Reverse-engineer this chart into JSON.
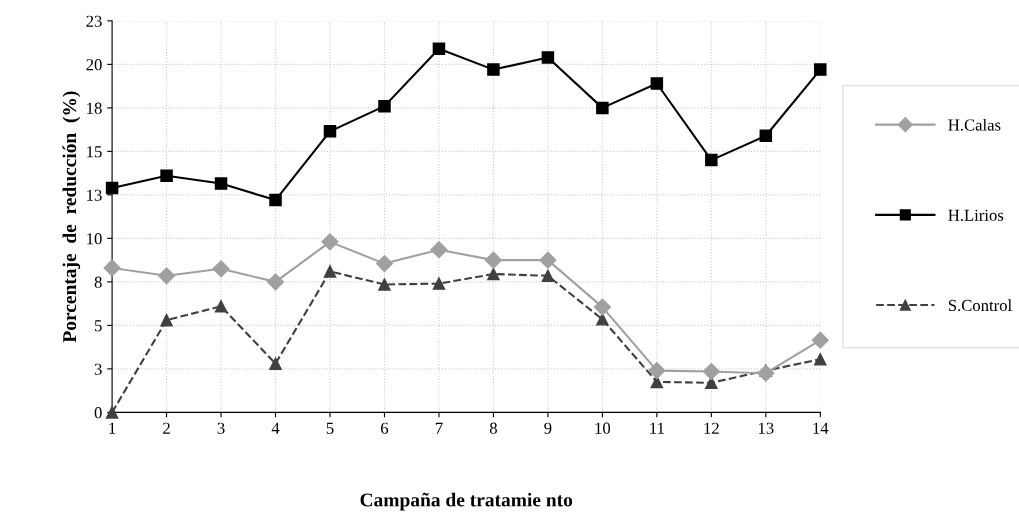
{
  "chart_data": {
    "type": "line",
    "xlabel": "Campaña de tratamie nto",
    "ylabel": "Porcentaje  de  reducción  (%)",
    "x": [
      1,
      2,
      3,
      4,
      5,
      6,
      7,
      8,
      9,
      10,
      11,
      12,
      13,
      14
    ],
    "series": [
      {
        "name": "H.Calas",
        "color": "#a0a0a0",
        "marker": "diamond",
        "line_style": "solid",
        "values": [
          8.3,
          7.85,
          8.25,
          7.5,
          9.8,
          8.55,
          9.35,
          8.75,
          8.75,
          6.05,
          2.4,
          2.35,
          2.25,
          4.15
        ]
      },
      {
        "name": "H.Lirios",
        "color": "#000000",
        "marker": "square",
        "line_style": "solid",
        "values": [
          12.9,
          13.6,
          13.15,
          12.2,
          16.15,
          17.6,
          20.9,
          19.7,
          20.4,
          17.5,
          18.9,
          14.5,
          15.9,
          19.7
        ]
      },
      {
        "name": "S.Control",
        "color": "#404040",
        "marker": "triangle",
        "line_style": "dashed",
        "values": [
          0,
          5.3,
          6.1,
          2.8,
          8.1,
          7.35,
          7.4,
          7.95,
          7.85,
          5.35,
          1.75,
          1.7,
          2.4,
          3.05
        ]
      }
    ],
    "xlim": [
      1,
      14
    ],
    "xticks": [
      1,
      2,
      3,
      4,
      5,
      6,
      7,
      8,
      9,
      10,
      11,
      12,
      13,
      14
    ],
    "ylim": [
      0,
      22.5
    ],
    "yticks": [
      0,
      {
        "value": 2.5,
        "label": "3"
      },
      5,
      {
        "value": 7.5,
        "label": "8"
      },
      10,
      {
        "value": 12.5,
        "label": "13"
      },
      15,
      {
        "value": 17.5,
        "label": "18"
      },
      20,
      {
        "value": 22.5,
        "label": "23"
      }
    ],
    "grid": true,
    "legend": "right"
  }
}
